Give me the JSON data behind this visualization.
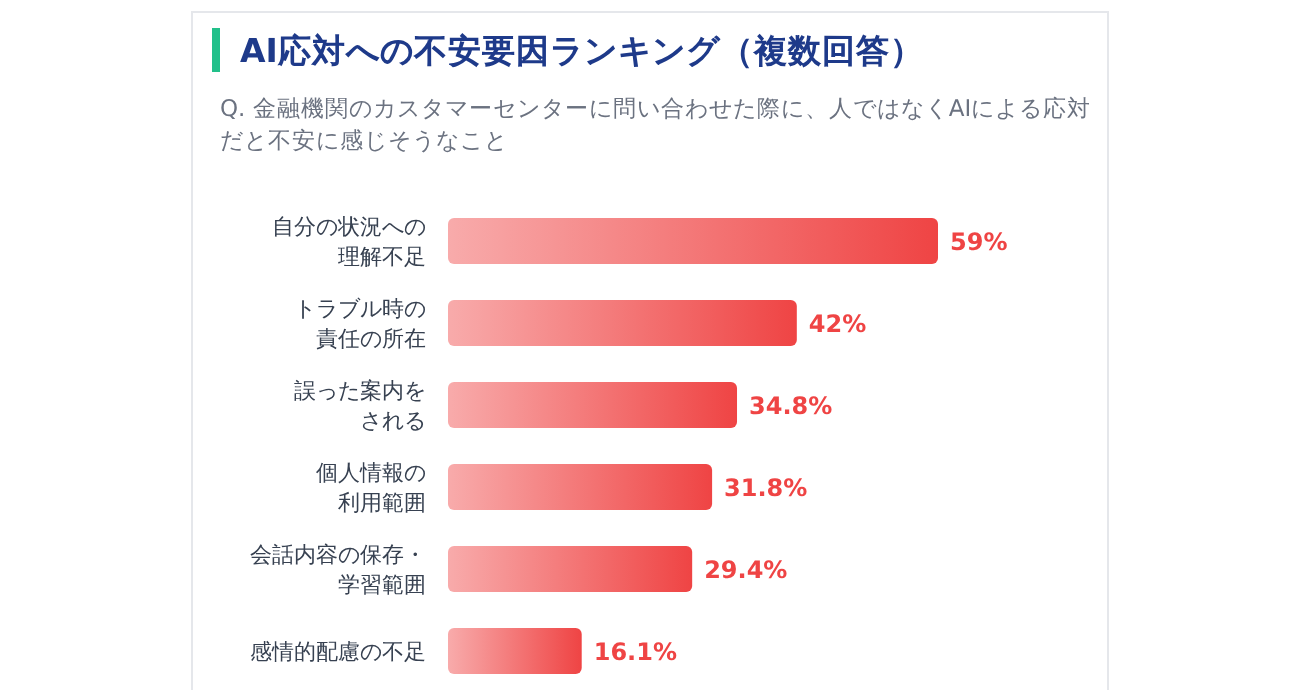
{
  "chart_data": {
    "type": "bar",
    "orientation": "horizontal",
    "title": "AI応対への不安要因ランキング（複数回答）",
    "subtitle": "Q. 金融機関のカスタマーセンターに問い合わせた際に、人ではなくAIによる応対だと不安に感じそうなこと",
    "categories": [
      "自分の状況への理解不足",
      "トラブル時の責任の所在",
      "誤った案内をされる",
      "個人情報の利用範囲",
      "会話内容の保存・学習範囲",
      "感情的配慮の不足"
    ],
    "values": [
      59,
      42,
      34.8,
      31.8,
      29.4,
      16.1
    ],
    "value_labels": [
      "59%",
      "42%",
      "34.8%",
      "31.8%",
      "29.4%",
      "16.1%"
    ],
    "color": "#ef4444"
  }
}
